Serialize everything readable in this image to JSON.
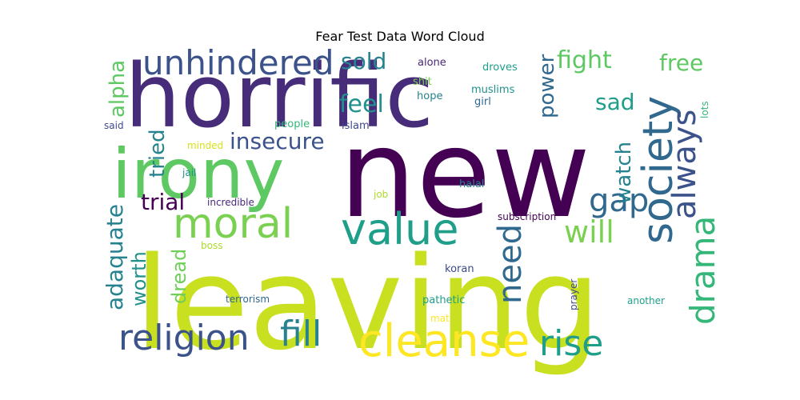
{
  "chart_data": {
    "type": "wordcloud",
    "title": "Fear Test Data Word Cloud",
    "background": "#ffffff",
    "colormap": "viridis",
    "words": [
      {
        "text": "leaving",
        "weight": 1.0,
        "color": "#c8e020"
      },
      {
        "text": "new",
        "weight": 0.85,
        "color": "#440154"
      },
      {
        "text": "horrific",
        "weight": 0.72,
        "color": "#472c7a"
      },
      {
        "text": "irony",
        "weight": 0.55,
        "color": "#5ec962"
      },
      {
        "text": "cleanse",
        "weight": 0.3,
        "color": "#fde725"
      },
      {
        "text": "society",
        "weight": 0.3,
        "color": "#31688e"
      },
      {
        "text": "value",
        "weight": 0.28,
        "color": "#1f9e89"
      },
      {
        "text": "religion",
        "weight": 0.25,
        "color": "#3b528b"
      },
      {
        "text": "moral",
        "weight": 0.25,
        "color": "#7ad151"
      },
      {
        "text": "unhindered",
        "weight": 0.22,
        "color": "#3b528b"
      },
      {
        "text": "rise",
        "weight": 0.22,
        "color": "#1f9e89"
      },
      {
        "text": "fill",
        "weight": 0.22,
        "color": "#26828e"
      },
      {
        "text": "drama",
        "weight": 0.2,
        "color": "#35b779"
      },
      {
        "text": "always",
        "weight": 0.2,
        "color": "#3b528b"
      },
      {
        "text": "gap",
        "weight": 0.2,
        "color": "#31688e"
      },
      {
        "text": "need",
        "weight": 0.2,
        "color": "#31688e"
      },
      {
        "text": "will",
        "weight": 0.18,
        "color": "#7ad151"
      },
      {
        "text": "adaquate",
        "weight": 0.15,
        "color": "#26828e"
      },
      {
        "text": "fight",
        "weight": 0.15,
        "color": "#5ec962"
      },
      {
        "text": "free",
        "weight": 0.15,
        "color": "#5ec962"
      },
      {
        "text": "feel",
        "weight": 0.15,
        "color": "#21918c"
      },
      {
        "text": "sad",
        "weight": 0.15,
        "color": "#1f9e89"
      },
      {
        "text": "watch",
        "weight": 0.15,
        "color": "#26828e"
      },
      {
        "text": "insecure",
        "weight": 0.15,
        "color": "#3b528b"
      },
      {
        "text": "trial",
        "weight": 0.15,
        "color": "#440154"
      },
      {
        "text": "power",
        "weight": 0.14,
        "color": "#31688e"
      },
      {
        "text": "sold",
        "weight": 0.14,
        "color": "#26828e"
      },
      {
        "text": "tried",
        "weight": 0.14,
        "color": "#26828e"
      },
      {
        "text": "alpha",
        "weight": 0.13,
        "color": "#5ec962"
      },
      {
        "text": "worth",
        "weight": 0.13,
        "color": "#21918c"
      },
      {
        "text": "dread",
        "weight": 0.13,
        "color": "#6ece58"
      },
      {
        "text": "alone",
        "weight": 0.05,
        "color": "#482878"
      },
      {
        "text": "droves",
        "weight": 0.05,
        "color": "#1f9e89"
      },
      {
        "text": "shit",
        "weight": 0.05,
        "color": "#7ad151"
      },
      {
        "text": "muslims",
        "weight": 0.05,
        "color": "#21918c"
      },
      {
        "text": "hope",
        "weight": 0.05,
        "color": "#26828e"
      },
      {
        "text": "girl",
        "weight": 0.05,
        "color": "#31688e"
      },
      {
        "text": "lots",
        "weight": 0.05,
        "color": "#35b779"
      },
      {
        "text": "said",
        "weight": 0.05,
        "color": "#3e4989"
      },
      {
        "text": "people",
        "weight": 0.05,
        "color": "#35b779"
      },
      {
        "text": "islam",
        "weight": 0.05,
        "color": "#3e4989"
      },
      {
        "text": "minded",
        "weight": 0.05,
        "color": "#d8e219"
      },
      {
        "text": "jail",
        "weight": 0.05,
        "color": "#21918c"
      },
      {
        "text": "job",
        "weight": 0.05,
        "color": "#addc30"
      },
      {
        "text": "halal",
        "weight": 0.05,
        "color": "#26828e"
      },
      {
        "text": "incredible",
        "weight": 0.05,
        "color": "#482878"
      },
      {
        "text": "subscription",
        "weight": 0.05,
        "color": "#440154"
      },
      {
        "text": "boss",
        "weight": 0.05,
        "color": "#addc30"
      },
      {
        "text": "koran",
        "weight": 0.05,
        "color": "#3e4989"
      },
      {
        "text": "terrorism",
        "weight": 0.05,
        "color": "#31688e"
      },
      {
        "text": "pathetic",
        "weight": 0.05,
        "color": "#1f9e89"
      },
      {
        "text": "prayer",
        "weight": 0.05,
        "color": "#3e4989"
      },
      {
        "text": "another",
        "weight": 0.05,
        "color": "#1f9e89"
      },
      {
        "text": "mat",
        "weight": 0.05,
        "color": "#fde725"
      }
    ]
  }
}
